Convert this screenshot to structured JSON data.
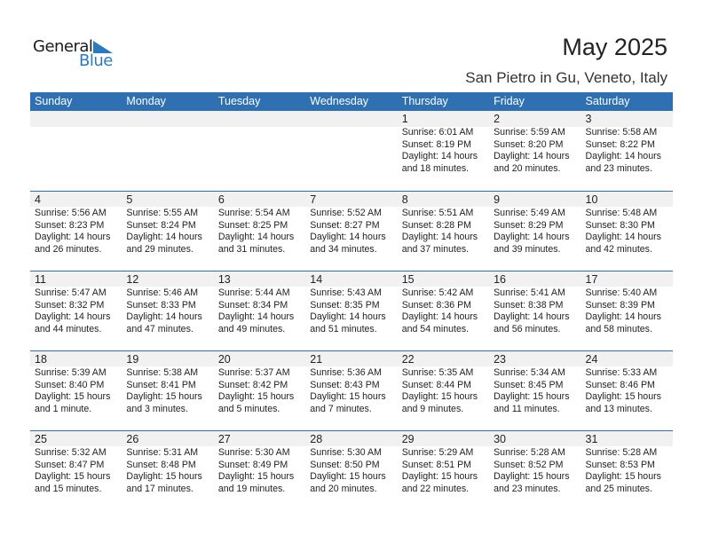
{
  "logo": {
    "line1": "General",
    "line2": "Blue",
    "color": "#2a7ac0"
  },
  "title": "May 2025",
  "location": "San Pietro in Gu, Veneto, Italy",
  "colors": {
    "header": "#2e70b1",
    "strip": "#f1f1f1"
  },
  "weekdays": [
    "Sunday",
    "Monday",
    "Tuesday",
    "Wednesday",
    "Thursday",
    "Friday",
    "Saturday"
  ],
  "leading_blanks": 4,
  "days": [
    {
      "d": "1",
      "sunrise": "Sunrise: 6:01 AM",
      "sunset": "Sunset: 8:19 PM",
      "daylight": "Daylight: 14 hours",
      "minutes": "and 18 minutes."
    },
    {
      "d": "2",
      "sunrise": "Sunrise: 5:59 AM",
      "sunset": "Sunset: 8:20 PM",
      "daylight": "Daylight: 14 hours",
      "minutes": "and 20 minutes."
    },
    {
      "d": "3",
      "sunrise": "Sunrise: 5:58 AM",
      "sunset": "Sunset: 8:22 PM",
      "daylight": "Daylight: 14 hours",
      "minutes": "and 23 minutes."
    },
    {
      "d": "4",
      "sunrise": "Sunrise: 5:56 AM",
      "sunset": "Sunset: 8:23 PM",
      "daylight": "Daylight: 14 hours",
      "minutes": "and 26 minutes."
    },
    {
      "d": "5",
      "sunrise": "Sunrise: 5:55 AM",
      "sunset": "Sunset: 8:24 PM",
      "daylight": "Daylight: 14 hours",
      "minutes": "and 29 minutes."
    },
    {
      "d": "6",
      "sunrise": "Sunrise: 5:54 AM",
      "sunset": "Sunset: 8:25 PM",
      "daylight": "Daylight: 14 hours",
      "minutes": "and 31 minutes."
    },
    {
      "d": "7",
      "sunrise": "Sunrise: 5:52 AM",
      "sunset": "Sunset: 8:27 PM",
      "daylight": "Daylight: 14 hours",
      "minutes": "and 34 minutes."
    },
    {
      "d": "8",
      "sunrise": "Sunrise: 5:51 AM",
      "sunset": "Sunset: 8:28 PM",
      "daylight": "Daylight: 14 hours",
      "minutes": "and 37 minutes."
    },
    {
      "d": "9",
      "sunrise": "Sunrise: 5:49 AM",
      "sunset": "Sunset: 8:29 PM",
      "daylight": "Daylight: 14 hours",
      "minutes": "and 39 minutes."
    },
    {
      "d": "10",
      "sunrise": "Sunrise: 5:48 AM",
      "sunset": "Sunset: 8:30 PM",
      "daylight": "Daylight: 14 hours",
      "minutes": "and 42 minutes."
    },
    {
      "d": "11",
      "sunrise": "Sunrise: 5:47 AM",
      "sunset": "Sunset: 8:32 PM",
      "daylight": "Daylight: 14 hours",
      "minutes": "and 44 minutes."
    },
    {
      "d": "12",
      "sunrise": "Sunrise: 5:46 AM",
      "sunset": "Sunset: 8:33 PM",
      "daylight": "Daylight: 14 hours",
      "minutes": "and 47 minutes."
    },
    {
      "d": "13",
      "sunrise": "Sunrise: 5:44 AM",
      "sunset": "Sunset: 8:34 PM",
      "daylight": "Daylight: 14 hours",
      "minutes": "and 49 minutes."
    },
    {
      "d": "14",
      "sunrise": "Sunrise: 5:43 AM",
      "sunset": "Sunset: 8:35 PM",
      "daylight": "Daylight: 14 hours",
      "minutes": "and 51 minutes."
    },
    {
      "d": "15",
      "sunrise": "Sunrise: 5:42 AM",
      "sunset": "Sunset: 8:36 PM",
      "daylight": "Daylight: 14 hours",
      "minutes": "and 54 minutes."
    },
    {
      "d": "16",
      "sunrise": "Sunrise: 5:41 AM",
      "sunset": "Sunset: 8:38 PM",
      "daylight": "Daylight: 14 hours",
      "minutes": "and 56 minutes."
    },
    {
      "d": "17",
      "sunrise": "Sunrise: 5:40 AM",
      "sunset": "Sunset: 8:39 PM",
      "daylight": "Daylight: 14 hours",
      "minutes": "and 58 minutes."
    },
    {
      "d": "18",
      "sunrise": "Sunrise: 5:39 AM",
      "sunset": "Sunset: 8:40 PM",
      "daylight": "Daylight: 15 hours",
      "minutes": "and 1 minute."
    },
    {
      "d": "19",
      "sunrise": "Sunrise: 5:38 AM",
      "sunset": "Sunset: 8:41 PM",
      "daylight": "Daylight: 15 hours",
      "minutes": "and 3 minutes."
    },
    {
      "d": "20",
      "sunrise": "Sunrise: 5:37 AM",
      "sunset": "Sunset: 8:42 PM",
      "daylight": "Daylight: 15 hours",
      "minutes": "and 5 minutes."
    },
    {
      "d": "21",
      "sunrise": "Sunrise: 5:36 AM",
      "sunset": "Sunset: 8:43 PM",
      "daylight": "Daylight: 15 hours",
      "minutes": "and 7 minutes."
    },
    {
      "d": "22",
      "sunrise": "Sunrise: 5:35 AM",
      "sunset": "Sunset: 8:44 PM",
      "daylight": "Daylight: 15 hours",
      "minutes": "and 9 minutes."
    },
    {
      "d": "23",
      "sunrise": "Sunrise: 5:34 AM",
      "sunset": "Sunset: 8:45 PM",
      "daylight": "Daylight: 15 hours",
      "minutes": "and 11 minutes."
    },
    {
      "d": "24",
      "sunrise": "Sunrise: 5:33 AM",
      "sunset": "Sunset: 8:46 PM",
      "daylight": "Daylight: 15 hours",
      "minutes": "and 13 minutes."
    },
    {
      "d": "25",
      "sunrise": "Sunrise: 5:32 AM",
      "sunset": "Sunset: 8:47 PM",
      "daylight": "Daylight: 15 hours",
      "minutes": "and 15 minutes."
    },
    {
      "d": "26",
      "sunrise": "Sunrise: 5:31 AM",
      "sunset": "Sunset: 8:48 PM",
      "daylight": "Daylight: 15 hours",
      "minutes": "and 17 minutes."
    },
    {
      "d": "27",
      "sunrise": "Sunrise: 5:30 AM",
      "sunset": "Sunset: 8:49 PM",
      "daylight": "Daylight: 15 hours",
      "minutes": "and 19 minutes."
    },
    {
      "d": "28",
      "sunrise": "Sunrise: 5:30 AM",
      "sunset": "Sunset: 8:50 PM",
      "daylight": "Daylight: 15 hours",
      "minutes": "and 20 minutes."
    },
    {
      "d": "29",
      "sunrise": "Sunrise: 5:29 AM",
      "sunset": "Sunset: 8:51 PM",
      "daylight": "Daylight: 15 hours",
      "minutes": "and 22 minutes."
    },
    {
      "d": "30",
      "sunrise": "Sunrise: 5:28 AM",
      "sunset": "Sunset: 8:52 PM",
      "daylight": "Daylight: 15 hours",
      "minutes": "and 23 minutes."
    },
    {
      "d": "31",
      "sunrise": "Sunrise: 5:28 AM",
      "sunset": "Sunset: 8:53 PM",
      "daylight": "Daylight: 15 hours",
      "minutes": "and 25 minutes."
    }
  ]
}
